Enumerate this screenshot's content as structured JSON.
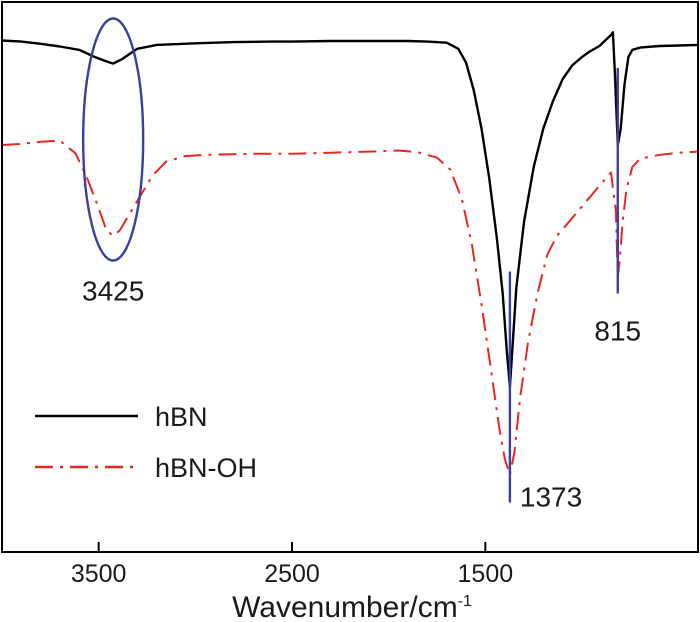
{
  "chart_data": {
    "type": "line",
    "title": "",
    "xlabel": "Wavenumber/cm",
    "xlabel_sup": "-1",
    "ylabel": "",
    "x_reversed": true,
    "xlim": [
      4000,
      400
    ],
    "xticks": [
      3500,
      2500,
      1500
    ],
    "y_ticks_shown": false,
    "grid": false,
    "legend_position": "bottom-left",
    "series": [
      {
        "name": "hBN",
        "color": "#000000",
        "style": "solid",
        "points": [
          [
            4000,
            93
          ],
          [
            3900,
            92.8
          ],
          [
            3800,
            92.4
          ],
          [
            3700,
            91.9
          ],
          [
            3600,
            91.3
          ],
          [
            3520,
            90.0
          ],
          [
            3460,
            89.2
          ],
          [
            3425,
            88.8
          ],
          [
            3380,
            89.6
          ],
          [
            3300,
            91.5
          ],
          [
            3200,
            92.2
          ],
          [
            3000,
            92.5
          ],
          [
            2800,
            92.7
          ],
          [
            2600,
            92.8
          ],
          [
            2500,
            92.8
          ],
          [
            2300,
            92.9
          ],
          [
            2100,
            92.9
          ],
          [
            1900,
            92.9
          ],
          [
            1800,
            92.8
          ],
          [
            1700,
            92.6
          ],
          [
            1640,
            91.5
          ],
          [
            1600,
            89
          ],
          [
            1560,
            84
          ],
          [
            1520,
            77
          ],
          [
            1480,
            68
          ],
          [
            1440,
            57
          ],
          [
            1410,
            47
          ],
          [
            1390,
            37
          ],
          [
            1373,
            30
          ],
          [
            1360,
            37
          ],
          [
            1340,
            48
          ],
          [
            1300,
            60
          ],
          [
            1250,
            70
          ],
          [
            1200,
            77
          ],
          [
            1150,
            82
          ],
          [
            1100,
            86
          ],
          [
            1050,
            88.5
          ],
          [
            1000,
            90
          ],
          [
            960,
            91
          ],
          [
            910,
            92
          ],
          [
            880,
            93
          ],
          [
            850,
            94
          ],
          [
            840,
            94.5
          ],
          [
            830,
            87
          ],
          [
            815,
            74
          ],
          [
            800,
            77
          ],
          [
            780,
            85
          ],
          [
            760,
            90
          ],
          [
            740,
            91.3
          ],
          [
            700,
            91.7
          ],
          [
            600,
            92
          ],
          [
            500,
            92.1
          ],
          [
            400,
            92.2
          ]
        ]
      },
      {
        "name": "hBN-OH",
        "color": "#e8271f",
        "style": "dashdot",
        "points": [
          [
            4000,
            74
          ],
          [
            3900,
            74.2
          ],
          [
            3800,
            74.6
          ],
          [
            3700,
            74.8
          ],
          [
            3620,
            72.5
          ],
          [
            3560,
            68
          ],
          [
            3500,
            62.5
          ],
          [
            3460,
            58.5
          ],
          [
            3425,
            57.5
          ],
          [
            3390,
            58.5
          ],
          [
            3340,
            61.5
          ],
          [
            3280,
            65
          ],
          [
            3220,
            68.5
          ],
          [
            3150,
            71
          ],
          [
            3050,
            72
          ],
          [
            2950,
            72.2
          ],
          [
            2850,
            72.3
          ],
          [
            2700,
            72.4
          ],
          [
            2500,
            72.4
          ],
          [
            2300,
            72.6
          ],
          [
            2100,
            72.8
          ],
          [
            1950,
            73
          ],
          [
            1850,
            72.7
          ],
          [
            1750,
            71.7
          ],
          [
            1680,
            69.5
          ],
          [
            1620,
            64
          ],
          [
            1570,
            56
          ],
          [
            1520,
            45
          ],
          [
            1470,
            33
          ],
          [
            1430,
            23
          ],
          [
            1400,
            17
          ],
          [
            1373,
            14
          ],
          [
            1350,
            18
          ],
          [
            1320,
            28
          ],
          [
            1280,
            38
          ],
          [
            1230,
            47
          ],
          [
            1180,
            54
          ],
          [
            1130,
            57.5
          ],
          [
            1080,
            59.5
          ],
          [
            1020,
            62
          ],
          [
            960,
            64.5
          ],
          [
            900,
            67
          ],
          [
            850,
            69
          ],
          [
            825,
            62
          ],
          [
            815,
            50
          ],
          [
            805,
            53
          ],
          [
            790,
            60
          ],
          [
            770,
            66
          ],
          [
            740,
            70
          ],
          [
            700,
            71.5
          ],
          [
            600,
            72.2
          ],
          [
            500,
            72.6
          ],
          [
            400,
            72.8
          ]
        ]
      }
    ],
    "annotations": [
      {
        "text": "3425",
        "x": 3425,
        "kind": "ellipse",
        "y_range": [
          53,
          97
        ]
      },
      {
        "text": "1373",
        "x": 1373,
        "kind": "vline",
        "y_range": [
          9,
          51
        ]
      },
      {
        "text": "815",
        "x": 815,
        "kind": "vline",
        "y_range": [
          47,
          88
        ]
      }
    ],
    "annotation_color": "#3c3f9b"
  }
}
